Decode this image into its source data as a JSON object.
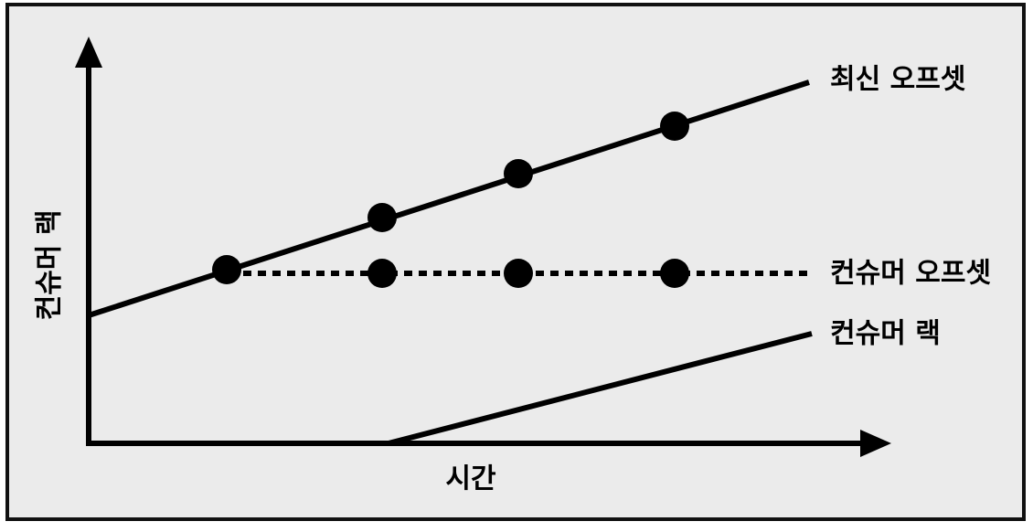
{
  "axes": {
    "y_label": "컨슈머 랙",
    "x_label": "시간"
  },
  "lines": [
    {
      "label": "최신 오프셋"
    },
    {
      "label": "컨슈머 오프셋"
    },
    {
      "label": "컨슈머 랙"
    }
  ]
}
